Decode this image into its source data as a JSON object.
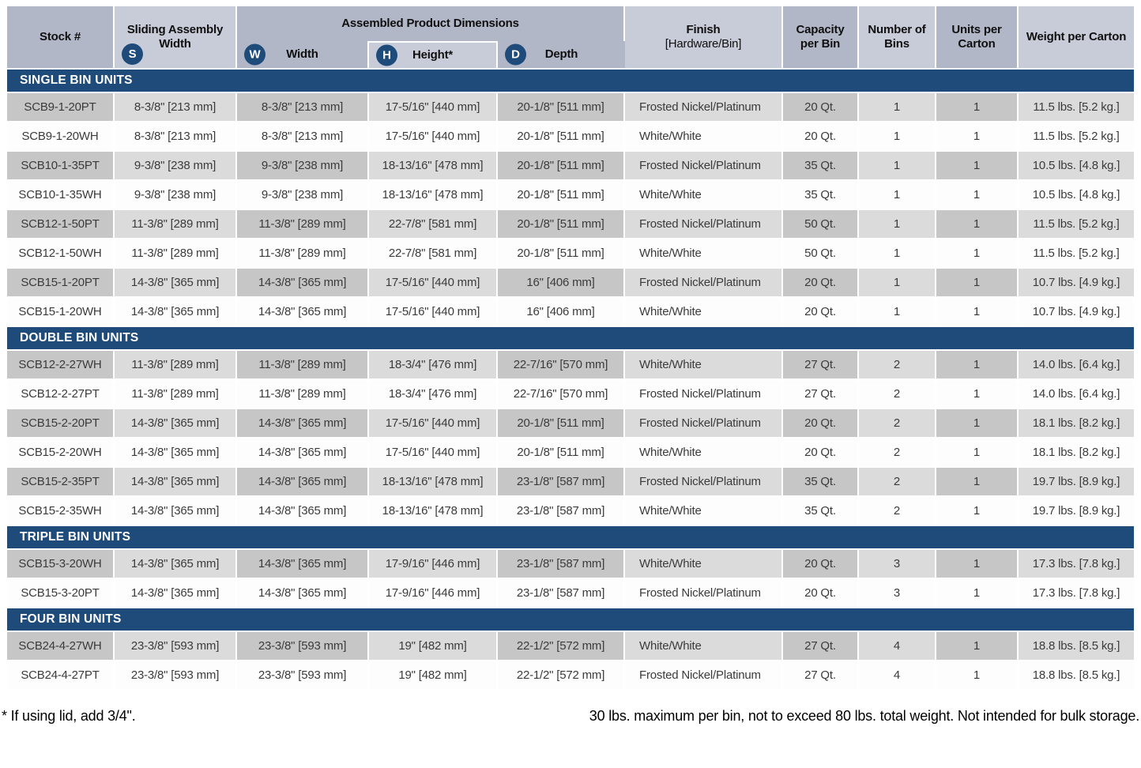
{
  "header": {
    "stock": "Stock #",
    "sliding": {
      "label": "Sliding Assembly Width",
      "badge": "S"
    },
    "dims_group": "Assembled Product Dimensions",
    "width": {
      "label": "Width",
      "badge": "W"
    },
    "height": {
      "label": "Height*",
      "badge": "H"
    },
    "depth": {
      "label": "Depth",
      "badge": "D"
    },
    "finish_line1": "Finish",
    "finish_line2": "[Hardware/Bin]",
    "capacity": "Capacity per Bin",
    "bins": "Number of Bins",
    "units": "Units per Carton",
    "weight": "Weight per Carton"
  },
  "column_keys": [
    "stock-number",
    "sliding-assembly-width",
    "assembled-width",
    "assembled-height",
    "assembled-depth",
    "finish",
    "capacity-per-bin",
    "number-of-bins",
    "units-per-carton",
    "weight-per-carton"
  ],
  "sections": [
    {
      "title": "SINGLE BIN UNITS",
      "rows": [
        [
          "SCB9-1-20PT",
          "8-3/8\" [213 mm]",
          "8-3/8\" [213 mm]",
          "17-5/16\" [440 mm]",
          "20-1/8\" [511 mm]",
          "Frosted Nickel/Platinum",
          "20 Qt.",
          "1",
          "1",
          "11.5 lbs. [5.2 kg.]"
        ],
        [
          "SCB9-1-20WH",
          "8-3/8\" [213 mm]",
          "8-3/8\" [213 mm]",
          "17-5/16\" [440 mm]",
          "20-1/8\" [511 mm]",
          "White/White",
          "20 Qt.",
          "1",
          "1",
          "11.5 lbs. [5.2 kg.]"
        ],
        [
          "SCB10-1-35PT",
          "9-3/8\" [238 mm]",
          "9-3/8\" [238 mm]",
          "18-13/16\" [478 mm]",
          "20-1/8\" [511 mm]",
          "Frosted Nickel/Platinum",
          "35 Qt.",
          "1",
          "1",
          "10.5 lbs. [4.8 kg.]"
        ],
        [
          "SCB10-1-35WH",
          "9-3/8\" [238 mm]",
          "9-3/8\" [238 mm]",
          "18-13/16\" [478 mm]",
          "20-1/8\" [511 mm]",
          "White/White",
          "35 Qt.",
          "1",
          "1",
          "10.5 lbs. [4.8 kg.]"
        ],
        [
          "SCB12-1-50PT",
          "11-3/8\" [289 mm]",
          "11-3/8\" [289 mm]",
          "22-7/8\" [581 mm]",
          "20-1/8\" [511 mm]",
          "Frosted Nickel/Platinum",
          "50 Qt.",
          "1",
          "1",
          "11.5 lbs. [5.2 kg.]"
        ],
        [
          "SCB12-1-50WH",
          "11-3/8\" [289 mm]",
          "11-3/8\" [289 mm]",
          "22-7/8\" [581 mm]",
          "20-1/8\" [511 mm]",
          "White/White",
          "50 Qt.",
          "1",
          "1",
          "11.5 lbs. [5.2 kg.]"
        ],
        [
          "SCB15-1-20PT",
          "14-3/8\" [365 mm]",
          "14-3/8\" [365 mm]",
          "17-5/16\" [440 mm]",
          "16\" [406 mm]",
          "Frosted Nickel/Platinum",
          "20 Qt.",
          "1",
          "1",
          "10.7 lbs. [4.9 kg.]"
        ],
        [
          "SCB15-1-20WH",
          "14-3/8\" [365 mm]",
          "14-3/8\" [365 mm]",
          "17-5/16\" [440 mm]",
          "16\" [406 mm]",
          "White/White",
          "20 Qt.",
          "1",
          "1",
          "10.7 lbs. [4.9 kg.]"
        ]
      ]
    },
    {
      "title": "DOUBLE BIN UNITS",
      "rows": [
        [
          "SCB12-2-27WH",
          "11-3/8\" [289 mm]",
          "11-3/8\" [289 mm]",
          "18-3/4\" [476 mm]",
          "22-7/16\" [570 mm]",
          "White/White",
          "27 Qt.",
          "2",
          "1",
          "14.0 lbs. [6.4 kg.]"
        ],
        [
          "SCB12-2-27PT",
          "11-3/8\" [289 mm]",
          "11-3/8\" [289 mm]",
          "18-3/4\" [476 mm]",
          "22-7/16\" [570 mm]",
          "Frosted Nickel/Platinum",
          "27 Qt.",
          "2",
          "1",
          "14.0 lbs. [6.4 kg.]"
        ],
        [
          "SCB15-2-20PT",
          "14-3/8\" [365 mm]",
          "14-3/8\" [365 mm]",
          "17-5/16\" [440 mm]",
          "20-1/8\" [511 mm]",
          "Frosted Nickel/Platinum",
          "20 Qt.",
          "2",
          "1",
          "18.1 lbs. [8.2 kg.]"
        ],
        [
          "SCB15-2-20WH",
          "14-3/8\" [365 mm]",
          "14-3/8\" [365 mm]",
          "17-5/16\" [440 mm]",
          "20-1/8\" [511 mm]",
          "White/White",
          "20 Qt.",
          "2",
          "1",
          "18.1 lbs. [8.2 kg.]"
        ],
        [
          "SCB15-2-35PT",
          "14-3/8\" [365 mm]",
          "14-3/8\" [365 mm]",
          "18-13/16\" [478 mm]",
          "23-1/8\" [587 mm]",
          "Frosted Nickel/Platinum",
          "35 Qt.",
          "2",
          "1",
          "19.7 lbs. [8.9 kg.]"
        ],
        [
          "SCB15-2-35WH",
          "14-3/8\" [365 mm]",
          "14-3/8\" [365 mm]",
          "18-13/16\" [478 mm]",
          "23-1/8\" [587 mm]",
          "White/White",
          "35 Qt.",
          "2",
          "1",
          "19.7 lbs. [8.9 kg.]"
        ]
      ]
    },
    {
      "title": "TRIPLE BIN UNITS",
      "rows": [
        [
          "SCB15-3-20WH",
          "14-3/8\" [365 mm]",
          "14-3/8\" [365 mm]",
          "17-9/16\" [446 mm]",
          "23-1/8\" [587 mm]",
          "White/White",
          "20 Qt.",
          "3",
          "1",
          "17.3 lbs. [7.8 kg.]"
        ],
        [
          "SCB15-3-20PT",
          "14-3/8\" [365 mm]",
          "14-3/8\" [365 mm]",
          "17-9/16\" [446 mm]",
          "23-1/8\" [587 mm]",
          "Frosted Nickel/Platinum",
          "20 Qt.",
          "3",
          "1",
          "17.3 lbs. [7.8 kg.]"
        ]
      ]
    },
    {
      "title": "FOUR BIN UNITS",
      "rows": [
        [
          "SCB24-4-27WH",
          "23-3/8\" [593 mm]",
          "23-3/8\" [593 mm]",
          "19\" [482 mm]",
          "22-1/2\" [572 mm]",
          "White/White",
          "27 Qt.",
          "4",
          "1",
          "18.8 lbs. [8.5 kg.]"
        ],
        [
          "SCB24-4-27PT",
          "23-3/8\" [593 mm]",
          "23-3/8\" [593 mm]",
          "19\" [482 mm]",
          "22-1/2\" [572 mm]",
          "Frosted Nickel/Platinum",
          "27 Qt.",
          "4",
          "1",
          "18.8 lbs. [8.5 kg.]"
        ]
      ]
    }
  ],
  "footnotes": {
    "left": "* If using lid, add 3/4\".",
    "right": "30 lbs. maximum per bin, not to exceed 80 lbs. total weight. Not intended for bulk storage."
  },
  "colors": {
    "navy": "#1e4b7a",
    "header_dark": "#b2b7c7",
    "header_light": "#c8ccd9",
    "row_dark": "#c6c6c6",
    "row_light": "#dbdbdb"
  }
}
